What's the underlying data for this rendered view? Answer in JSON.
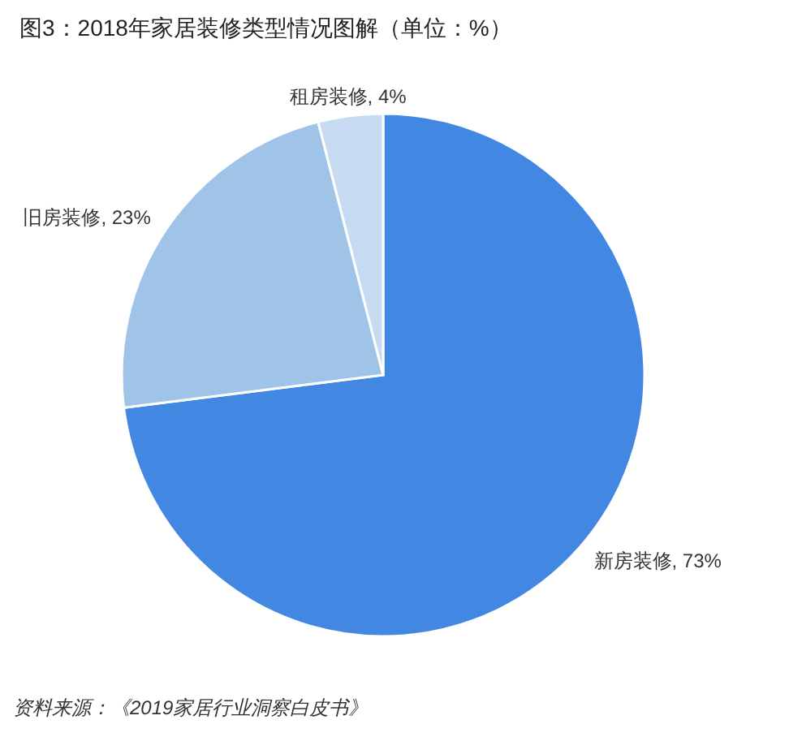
{
  "chart_data": {
    "type": "pie",
    "title": "图3：2018年家居装修类型情况图解（单位：%）",
    "categories": [
      "新房装修",
      "旧房装修",
      "租房装修"
    ],
    "values": [
      73,
      23,
      4
    ],
    "colors": [
      "#4288e2",
      "#9fc4e8",
      "#c6dbf2"
    ],
    "value_labels": [
      ", 73%",
      ", 23%",
      ", 4%"
    ],
    "annotations": [
      "资料来源：《2019家居行业洞察白皮书》"
    ]
  }
}
